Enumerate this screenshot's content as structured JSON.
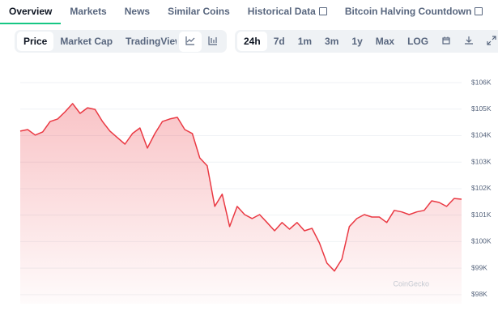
{
  "tabs": [
    "Overview",
    "Markets",
    "News",
    "Similar Coins",
    "Historical Data",
    "Bitcoin Halving Countdown"
  ],
  "modes": [
    "Price",
    "Market Cap",
    "TradingView"
  ],
  "ranges": [
    "24h",
    "7d",
    "1m",
    "3m",
    "1y",
    "Max",
    "LOG"
  ],
  "chart_data": {
    "type": "line",
    "color": "#ea3943",
    "grid": true,
    "watermark": "CoinGecko",
    "ylim": [
      97660,
      106520
    ],
    "yticks": [
      {
        "value": 98000,
        "label": "$98K"
      },
      {
        "value": 99000,
        "label": "$99K"
      },
      {
        "value": 100000,
        "label": "$100K"
      },
      {
        "value": 101000,
        "label": "$101K"
      },
      {
        "value": 102000,
        "label": "$102K"
      },
      {
        "value": 103000,
        "label": "$103K"
      },
      {
        "value": 104000,
        "label": "$104K"
      },
      {
        "value": 105000,
        "label": "$105K"
      },
      {
        "value": 106000,
        "label": "$106K"
      }
    ],
    "values": [
      104170,
      104230,
      104020,
      104140,
      104530,
      104630,
      104900,
      105210,
      104840,
      105050,
      104990,
      104530,
      104170,
      103920,
      103680,
      104080,
      104290,
      103530,
      104080,
      104530,
      104630,
      104690,
      104230,
      104080,
      103160,
      102860,
      101330,
      101790,
      100570,
      101330,
      101020,
      100870,
      101020,
      100720,
      100410,
      100720,
      100470,
      100720,
      100410,
      100500,
      99950,
      99190,
      98890,
      99340,
      100570,
      100870,
      101020,
      100930,
      100930,
      100720,
      101180,
      101120,
      101020,
      101120,
      101180,
      101540,
      101480,
      101330,
      101630,
      101600
    ]
  }
}
